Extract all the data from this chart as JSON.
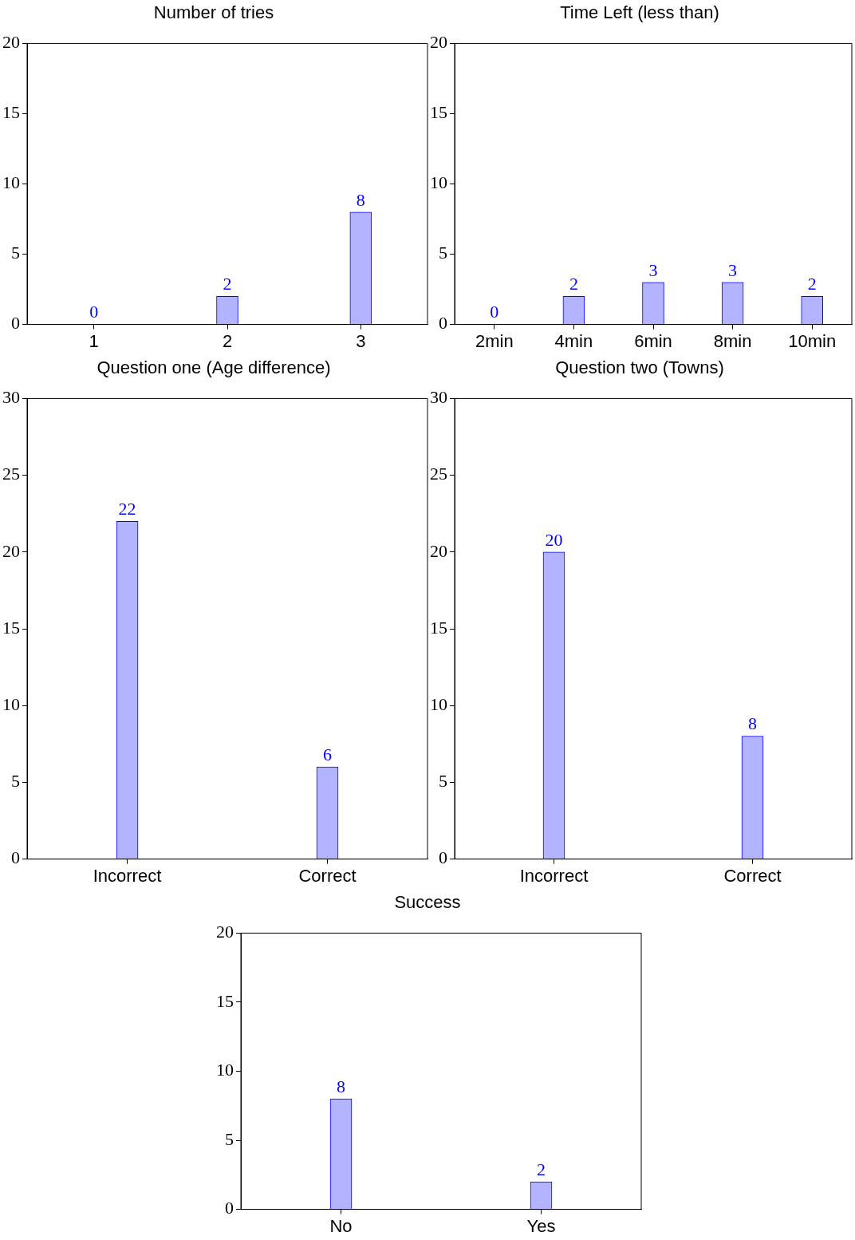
{
  "chart_data": [
    {
      "type": "bar",
      "title": "Number of tries",
      "categories": [
        "1",
        "2",
        "3"
      ],
      "values": [
        0,
        2,
        8
      ],
      "color": "#b3b3ff",
      "ylim": [
        0,
        20
      ],
      "yticks": [
        0,
        5,
        10,
        15,
        20
      ],
      "data_labels": true,
      "grid": false,
      "legend": false
    },
    {
      "type": "bar",
      "title": "Time Left (less than)",
      "categories": [
        "2min",
        "4min",
        "6min",
        "8min",
        "10min"
      ],
      "values": [
        0,
        2,
        3,
        3,
        2
      ],
      "color": "#b3b3ff",
      "ylim": [
        0,
        20
      ],
      "yticks": [
        0,
        5,
        10,
        15,
        20
      ],
      "data_labels": true,
      "grid": false,
      "legend": false
    },
    {
      "type": "bar",
      "title": "Question one (Age difference)",
      "categories": [
        "Incorrect",
        "Correct"
      ],
      "values": [
        22,
        6
      ],
      "color": "#b3b3ff",
      "ylim": [
        0,
        30
      ],
      "yticks": [
        0,
        5,
        10,
        15,
        20,
        25,
        30
      ],
      "data_labels": true,
      "grid": false,
      "legend": false
    },
    {
      "type": "bar",
      "title": "Question two (Towns)",
      "categories": [
        "Incorrect",
        "Correct"
      ],
      "values": [
        20,
        8
      ],
      "color": "#b3b3ff",
      "ylim": [
        0,
        30
      ],
      "yticks": [
        0,
        5,
        10,
        15,
        20,
        25,
        30
      ],
      "data_labels": true,
      "grid": false,
      "legend": false
    },
    {
      "type": "bar",
      "title": "Success",
      "categories": [
        "No",
        "Yes"
      ],
      "values": [
        8,
        2
      ],
      "color": "#b3b3ff",
      "ylim": [
        0,
        20
      ],
      "yticks": [
        0,
        5,
        10,
        15,
        20
      ],
      "data_labels": true,
      "grid": false,
      "legend": false
    }
  ]
}
